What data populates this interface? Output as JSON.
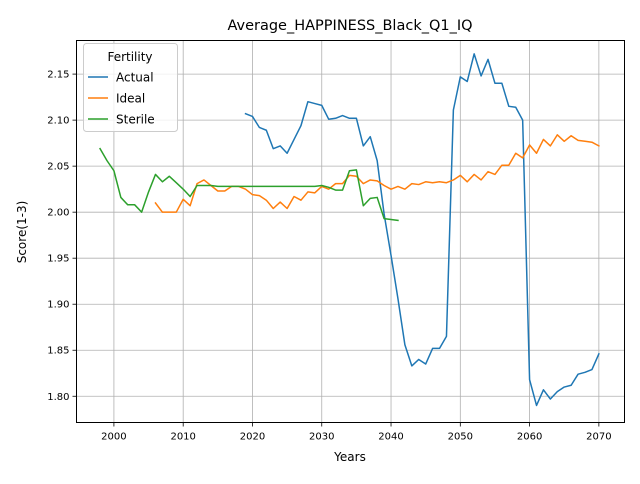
{
  "chart_data": {
    "type": "line",
    "title": "Average_HAPPINESS_Black_Q1_IQ",
    "xlabel": "Years",
    "ylabel": "Score(1-3)",
    "xlim": [
      1994.6,
      2073.7
    ],
    "ylim": [
      1.7715,
      2.1865
    ],
    "xticks": [
      2000,
      2010,
      2020,
      2030,
      2040,
      2050,
      2060,
      2070
    ],
    "xtick_labels": [
      "2000",
      "2010",
      "2020",
      "2030",
      "2040",
      "2050",
      "2060",
      "2070"
    ],
    "yticks": [
      1.8,
      1.85,
      1.9,
      1.95,
      2.0,
      2.05,
      2.1,
      2.15
    ],
    "ytick_labels": [
      "1.80",
      "1.85",
      "1.90",
      "1.95",
      "2.00",
      "2.05",
      "2.10",
      "2.15"
    ],
    "grid": true,
    "legend": {
      "title": "Fertility",
      "placement": "top-left"
    },
    "series": [
      {
        "name": "Actual",
        "color": "#1f77b4",
        "x": [
          2019,
          2020,
          2021,
          2022,
          2023,
          2024,
          2025,
          2026,
          2027,
          2028,
          2029,
          2030,
          2031,
          2032,
          2033,
          2034,
          2035,
          2036,
          2037,
          2038,
          2039,
          2040,
          2041,
          2042,
          2043,
          2044,
          2045,
          2046,
          2047,
          2048,
          2049,
          2050,
          2051,
          2052,
          2053,
          2054,
          2055,
          2056,
          2057,
          2058,
          2059,
          2060,
          2061,
          2062,
          2063,
          2064,
          2065,
          2066,
          2067,
          2068,
          2069,
          2070
        ],
        "y": [
          2.107,
          2.104,
          2.092,
          2.089,
          2.069,
          2.072,
          2.064,
          2.079,
          2.094,
          2.12,
          2.118,
          2.116,
          2.101,
          2.102,
          2.105,
          2.102,
          2.102,
          2.072,
          2.082,
          2.056,
          1.998,
          1.953,
          1.906,
          1.856,
          1.833,
          1.84,
          1.835,
          1.852,
          1.852,
          1.865,
          2.111,
          2.147,
          2.142,
          2.172,
          2.148,
          2.166,
          2.14,
          2.14,
          2.115,
          2.114,
          2.1,
          1.818,
          1.79,
          1.807,
          1.797,
          1.805,
          1.81,
          1.812,
          1.824,
          1.826,
          1.829,
          1.846
        ]
      },
      {
        "name": "Ideal",
        "color": "#ff7f0e",
        "x": [
          2006,
          2007,
          2008,
          2009,
          2010,
          2011,
          2012,
          2013,
          2014,
          2015,
          2016,
          2017,
          2018,
          2019,
          2020,
          2021,
          2022,
          2023,
          2024,
          2025,
          2026,
          2027,
          2028,
          2029,
          2030,
          2031,
          2032,
          2033,
          2034,
          2035,
          2036,
          2037,
          2038,
          2039,
          2040,
          2041,
          2042,
          2043,
          2044,
          2045,
          2046,
          2047,
          2048,
          2049,
          2050,
          2051,
          2052,
          2053,
          2054,
          2055,
          2056,
          2057,
          2058,
          2059,
          2060,
          2061,
          2062,
          2063,
          2064,
          2065,
          2066,
          2067,
          2068,
          2069,
          2070
        ],
        "y": [
          2.01,
          2.0,
          2.0,
          2.0,
          2.014,
          2.007,
          2.031,
          2.035,
          2.029,
          2.023,
          2.023,
          2.028,
          2.028,
          2.025,
          2.019,
          2.018,
          2.013,
          2.004,
          2.011,
          2.004,
          2.017,
          2.013,
          2.022,
          2.021,
          2.028,
          2.025,
          2.031,
          2.031,
          2.04,
          2.039,
          2.031,
          2.035,
          2.034,
          2.029,
          2.025,
          2.028,
          2.025,
          2.031,
          2.03,
          2.033,
          2.032,
          2.033,
          2.032,
          2.035,
          2.04,
          2.033,
          2.041,
          2.035,
          2.044,
          2.041,
          2.051,
          2.051,
          2.064,
          2.059,
          2.073,
          2.064,
          2.079,
          2.072,
          2.084,
          2.077,
          2.083,
          2.078,
          2.077,
          2.076,
          2.072
        ]
      },
      {
        "name": "Sterile",
        "color": "#2ca02c",
        "x": [
          1998,
          1999,
          2000,
          2001,
          2002,
          2003,
          2004,
          2005,
          2006,
          2007,
          2008,
          2009,
          2010,
          2011,
          2012,
          2013,
          2014,
          2015,
          2016,
          2017,
          2018,
          2019,
          2020,
          2021,
          2022,
          2023,
          2024,
          2025,
          2026,
          2027,
          2028,
          2029,
          2030,
          2031,
          2032,
          2033,
          2034,
          2035,
          2036,
          2037,
          2038,
          2039,
          2040,
          2041
        ],
        "y": [
          2.069,
          2.056,
          2.045,
          2.016,
          2.008,
          2.008,
          2.0,
          2.022,
          2.041,
          2.033,
          2.039,
          2.032,
          2.025,
          2.017,
          2.029,
          2.029,
          2.029,
          2.028,
          2.028,
          2.028,
          2.028,
          2.028,
          2.028,
          2.028,
          2.028,
          2.028,
          2.028,
          2.028,
          2.028,
          2.028,
          2.028,
          2.028,
          2.029,
          2.027,
          2.024,
          2.024,
          2.045,
          2.046,
          2.007,
          2.015,
          2.016,
          1.993,
          1.992,
          1.991
        ]
      }
    ]
  }
}
